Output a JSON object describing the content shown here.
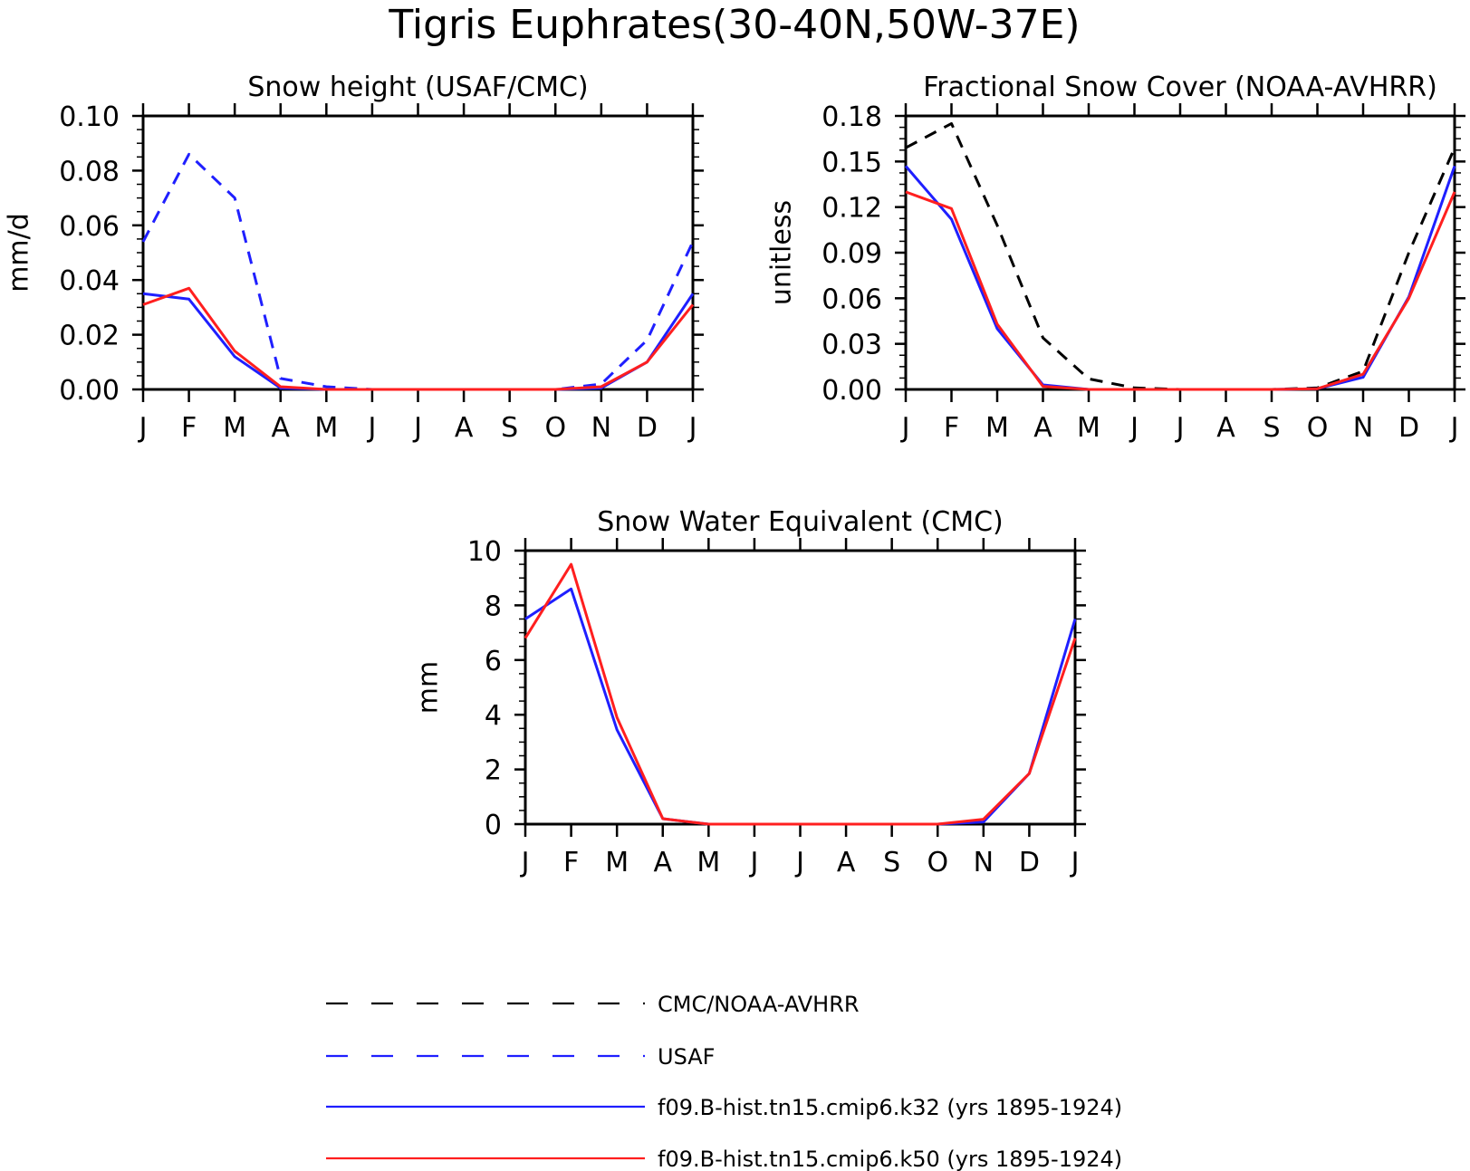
{
  "figure": {
    "title": "Tigris Euphrates(30-40N,50W-37E)"
  },
  "months": [
    "J",
    "F",
    "M",
    "A",
    "M",
    "J",
    "J",
    "A",
    "S",
    "O",
    "N",
    "D",
    "J"
  ],
  "colors": {
    "obs": "#000000",
    "usaf": "#1f1fff",
    "k32": "#1f1fff",
    "k50": "#ff1f1f"
  },
  "legend": {
    "items": [
      {
        "key": "obs",
        "label": "CMC/NOAA-AVHRR",
        "color": "#000000",
        "dashed": true
      },
      {
        "key": "usaf",
        "label": "USAF",
        "color": "#1f1fff",
        "dashed": true
      },
      {
        "key": "k32",
        "label": "f09.B-hist.tn15.cmip6.k32 (yrs 1895-1924)",
        "color": "#1f1fff",
        "dashed": false
      },
      {
        "key": "k50",
        "label": "f09.B-hist.tn15.cmip6.k50 (yrs 1895-1924)",
        "color": "#ff1f1f",
        "dashed": false
      }
    ]
  },
  "chart_data": [
    {
      "type": "line",
      "title": "Snow height (USAF/CMC)",
      "ylabel": "mm/d",
      "ylim": [
        0,
        0.1
      ],
      "yticks": [
        "0.00",
        "0.02",
        "0.04",
        "0.06",
        "0.08",
        "0.10"
      ],
      "ytick_values": [
        0,
        0.02,
        0.04,
        0.06,
        0.08,
        0.1
      ],
      "x": [
        "J",
        "F",
        "M",
        "A",
        "M",
        "J",
        "J",
        "A",
        "S",
        "O",
        "N",
        "D",
        "J"
      ],
      "series": [
        {
          "key": "usaf",
          "dashed": true,
          "values": [
            0.054,
            0.086,
            0.07,
            0.004,
            0.001,
            0,
            0,
            0,
            0,
            0,
            0.002,
            0.018,
            0.054
          ]
        },
        {
          "key": "k32",
          "dashed": false,
          "values": [
            0.035,
            0.033,
            0.012,
            0.0005,
            0,
            0,
            0,
            0,
            0,
            0,
            0.0005,
            0.01,
            0.035
          ]
        },
        {
          "key": "k50",
          "dashed": false,
          "values": [
            0.031,
            0.037,
            0.014,
            0.001,
            0,
            0,
            0,
            0,
            0,
            0,
            0.001,
            0.01,
            0.031
          ]
        }
      ]
    },
    {
      "type": "line",
      "title": "Fractional Snow Cover (NOAA-AVHRR)",
      "ylabel": "unitless",
      "ylim": [
        0,
        0.18
      ],
      "yticks": [
        "0.00",
        "0.03",
        "0.06",
        "0.09",
        "0.12",
        "0.15",
        "0.18"
      ],
      "ytick_values": [
        0,
        0.03,
        0.06,
        0.09,
        0.12,
        0.15,
        0.18
      ],
      "x": [
        "J",
        "F",
        "M",
        "A",
        "M",
        "J",
        "J",
        "A",
        "S",
        "O",
        "N",
        "D",
        "J"
      ],
      "series": [
        {
          "key": "obs",
          "dashed": true,
          "values": [
            0.159,
            0.175,
            0.108,
            0.034,
            0.007,
            0.001,
            0,
            0,
            0,
            0.001,
            0.012,
            0.09,
            0.159
          ]
        },
        {
          "key": "k32",
          "dashed": false,
          "values": [
            0.147,
            0.112,
            0.04,
            0.003,
            0,
            0,
            0,
            0,
            0,
            0.0005,
            0.008,
            0.061,
            0.147
          ]
        },
        {
          "key": "k50",
          "dashed": false,
          "values": [
            0.13,
            0.119,
            0.043,
            0.002,
            0,
            0,
            0,
            0,
            0,
            0.0005,
            0.01,
            0.06,
            0.13
          ]
        }
      ]
    },
    {
      "type": "line",
      "title": "Snow Water Equivalent (CMC)",
      "ylabel": "mm",
      "ylim": [
        0,
        10
      ],
      "yticks": [
        "0",
        "2",
        "4",
        "6",
        "8",
        "10"
      ],
      "ytick_values": [
        0,
        2,
        4,
        6,
        8,
        10
      ],
      "x": [
        "J",
        "F",
        "M",
        "A",
        "M",
        "J",
        "J",
        "A",
        "S",
        "O",
        "N",
        "D",
        "J"
      ],
      "series": [
        {
          "key": "k32",
          "dashed": false,
          "values": [
            7.5,
            8.6,
            3.45,
            0.2,
            0,
            0,
            0,
            0,
            0,
            0,
            0.08,
            1.85,
            7.5
          ]
        },
        {
          "key": "k50",
          "dashed": false,
          "values": [
            6.8,
            9.5,
            3.9,
            0.2,
            0,
            0,
            0,
            0,
            0,
            0,
            0.18,
            1.85,
            6.8
          ]
        }
      ]
    }
  ]
}
